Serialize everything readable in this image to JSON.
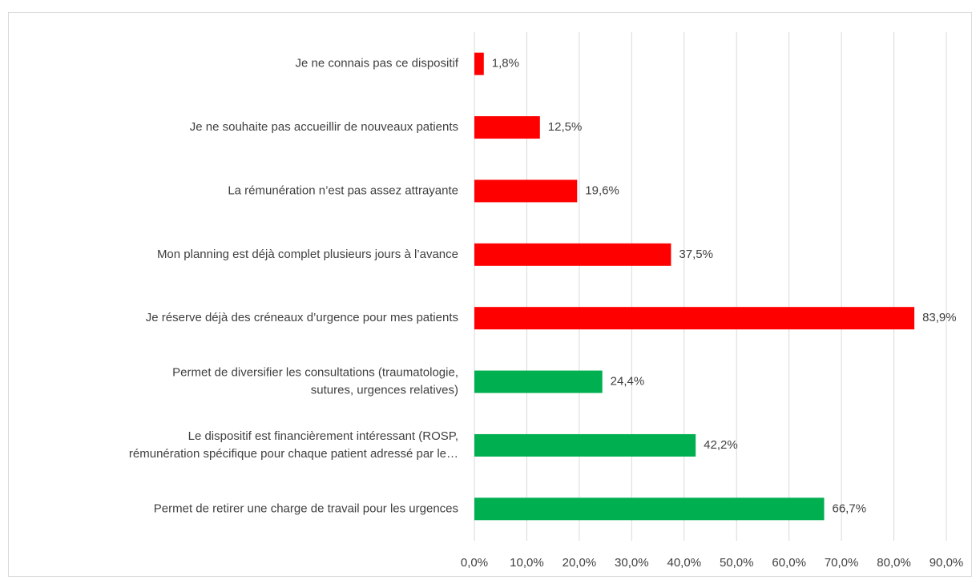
{
  "chart_data": {
    "type": "barh",
    "categories": [
      "Je ne connais pas ce dispositif",
      "Je ne souhaite pas accueillir de nouveaux patients",
      "La rémunération n’est pas assez attrayante",
      "Mon planning est déjà complet plusieurs jours à l’avance",
      "Je réserve déjà des créneaux d’urgence pour mes patients",
      "Permet de diversifier les consultations (traumatologie,\nsutures, urgences relatives)",
      "Le dispositif est financièrement intéressant (ROSP,\nrémunération spécifique pour chaque patient adressé par le…",
      "Permet de retirer une charge de travail pour les urgences"
    ],
    "values": [
      1.8,
      12.5,
      19.6,
      37.5,
      83.9,
      24.4,
      42.2,
      66.7
    ],
    "value_labels": [
      "1,8%",
      "12,5%",
      "19,6%",
      "37,5%",
      "83,9%",
      "24,4%",
      "42,2%",
      "66,7%"
    ],
    "colors": [
      "#ff0000",
      "#ff0000",
      "#ff0000",
      "#ff0000",
      "#ff0000",
      "#00b050",
      "#00b050",
      "#00b050"
    ],
    "xlim": [
      0,
      90
    ],
    "xticks": [
      {
        "value": 0,
        "label": "0,0%"
      },
      {
        "value": 10,
        "label": "10,0%"
      },
      {
        "value": 20,
        "label": "20,0%"
      },
      {
        "value": 30,
        "label": "30,0%"
      },
      {
        "value": 40,
        "label": "40,0%"
      },
      {
        "value": 50,
        "label": "50,0%"
      },
      {
        "value": 60,
        "label": "60,0%"
      },
      {
        "value": 70,
        "label": "70,0%"
      },
      {
        "value": 80,
        "label": "80,0%"
      },
      {
        "value": 90,
        "label": "90,0%"
      }
    ],
    "grid": true
  }
}
